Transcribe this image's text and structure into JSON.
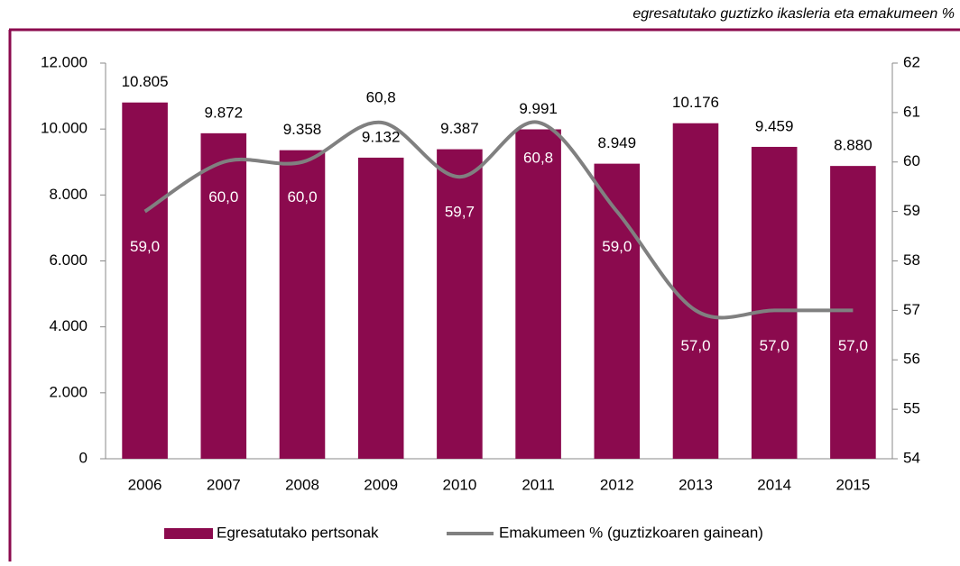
{
  "chart_data": {
    "type": "bar",
    "subtitle": "egresatutako guztizko ikasleria eta emakumeen %",
    "categories": [
      "2006",
      "2007",
      "2008",
      "2009",
      "2010",
      "2011",
      "2012",
      "2013",
      "2014",
      "2015"
    ],
    "series": [
      {
        "name": "Egresatutako pertsonak",
        "type": "bar",
        "color": "#8b0a4e",
        "values": [
          10805,
          9872,
          9358,
          9132,
          9387,
          9991,
          8949,
          10176,
          9459,
          8880
        ],
        "value_labels": [
          "10.805",
          "9.872",
          "9.358",
          "9.132",
          "9.387",
          "9.991",
          "8.949",
          "10.176",
          "9.459",
          "8.880"
        ]
      },
      {
        "name": "Emakumeen % (guztizkoaren gainean)",
        "type": "line",
        "axis": "y2",
        "color": "#808080",
        "values": [
          59.0,
          60.0,
          60.0,
          60.8,
          59.7,
          60.8,
          59.0,
          57.0,
          57.0,
          57.0
        ],
        "value_labels": [
          "59,0",
          "60,0",
          "60,0",
          "60,8",
          "59,7",
          "60,8",
          "59,0",
          "57,0",
          "57,0",
          "57,0"
        ]
      }
    ],
    "ylim": [
      0,
      12000
    ],
    "yticks": [
      0,
      {
        "value": 2000,
        "label": "2.000"
      },
      {
        "value": 4000,
        "label": "4.000"
      },
      {
        "value": 6000,
        "label": "6.000"
      },
      {
        "value": 8000,
        "label": "8.000"
      },
      {
        "value": 10000,
        "label": "10.000"
      },
      {
        "value": 12000,
        "label": "12.000"
      }
    ],
    "y2lim": [
      54,
      62
    ],
    "y2ticks": [
      54,
      55,
      56,
      57,
      58,
      59,
      60,
      61,
      62
    ],
    "legend": "bottom"
  }
}
